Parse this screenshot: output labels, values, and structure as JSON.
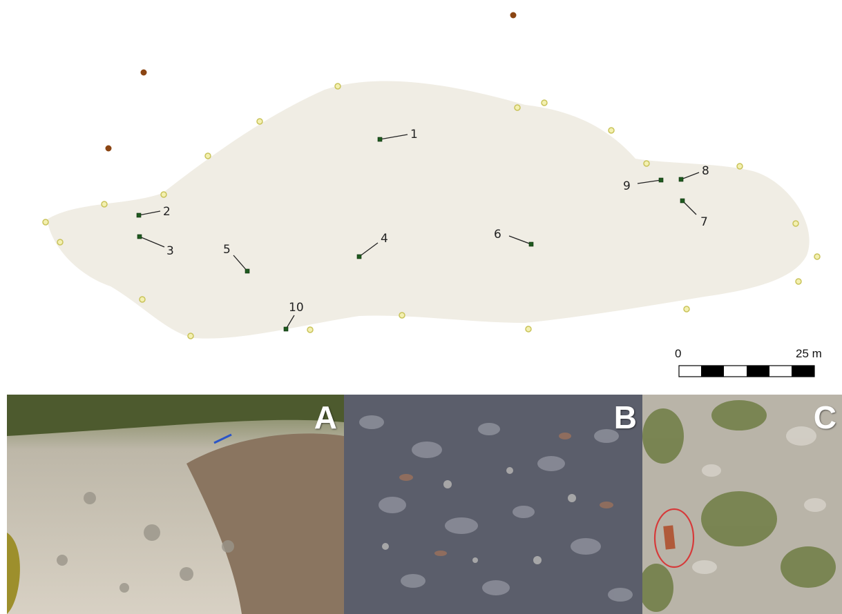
{
  "sample_points": [
    {
      "label": "1"
    },
    {
      "label": "2"
    },
    {
      "label": "3"
    },
    {
      "label": "4"
    },
    {
      "label": "5"
    },
    {
      "label": "6"
    },
    {
      "label": "7"
    },
    {
      "label": "8"
    },
    {
      "label": "9"
    },
    {
      "label": "10"
    }
  ],
  "scale_bar": {
    "start_label": "0",
    "end_label": "25 m"
  },
  "photos": [
    {
      "letter": "A"
    },
    {
      "letter": "B"
    },
    {
      "letter": "C"
    }
  ],
  "colors": {
    "area_fill": "#f0ede4",
    "sample_point": "#1f5a1f",
    "boundary_point_fill": "#f3f0b0",
    "boundary_point_stroke": "#c9c35a",
    "outside_point": "#8b4513",
    "highlight_ellipse": "#d63a3a"
  }
}
